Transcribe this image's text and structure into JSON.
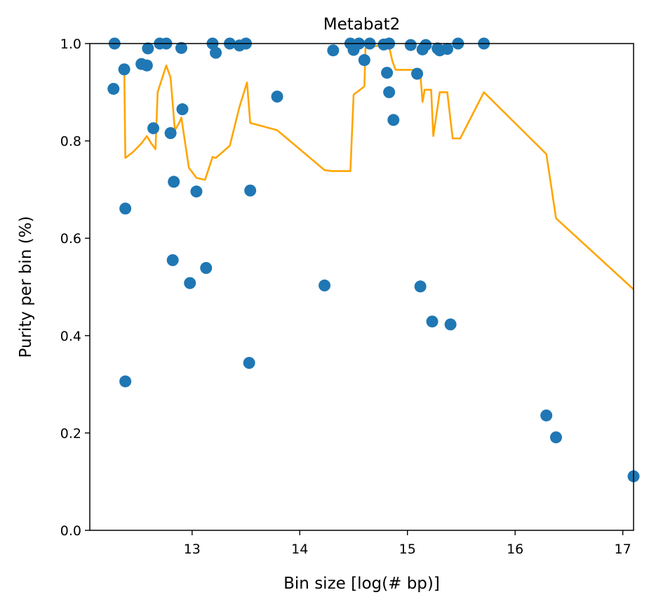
{
  "chart_data": {
    "type": "scatter",
    "title": "Metabat2",
    "xlabel": "Bin size [log(# bp)]",
    "ylabel": "Purity per bin (%)",
    "xlim": [
      12.05,
      17.1
    ],
    "ylim": [
      0.0,
      1.0
    ],
    "xticks": [
      13,
      14,
      15,
      16,
      17
    ],
    "yticks": [
      0.0,
      0.2,
      0.4,
      0.6,
      0.8,
      1.0
    ],
    "xtick_labels": [
      "13",
      "14",
      "15",
      "16",
      "17"
    ],
    "ytick_labels": [
      "0.0",
      "0.2",
      "0.4",
      "0.6",
      "0.8",
      "1.0"
    ],
    "grid": false,
    "legend": false,
    "colors": {
      "points": "#1f77b4",
      "line": "#ffa500"
    },
    "series": [
      {
        "kind": "scatter",
        "points": [
          [
            12.28,
            1.0
          ],
          [
            12.27,
            0.907
          ],
          [
            12.37,
            0.947
          ],
          [
            12.53,
            0.958
          ],
          [
            12.58,
            0.955
          ],
          [
            12.59,
            0.99
          ],
          [
            12.38,
            0.661
          ],
          [
            12.38,
            0.306
          ],
          [
            12.64,
            0.826
          ],
          [
            12.7,
            1.0
          ],
          [
            12.76,
            1.0
          ],
          [
            12.8,
            0.816
          ],
          [
            12.83,
            0.716
          ],
          [
            12.82,
            0.555
          ],
          [
            12.9,
            0.991
          ],
          [
            12.91,
            0.865
          ],
          [
            12.98,
            0.508
          ],
          [
            13.04,
            0.696
          ],
          [
            13.13,
            0.539
          ],
          [
            13.19,
            1.0
          ],
          [
            13.22,
            0.981
          ],
          [
            13.35,
            1.0
          ],
          [
            13.44,
            0.996
          ],
          [
            13.5,
            1.0
          ],
          [
            13.54,
            0.698
          ],
          [
            13.53,
            0.344
          ],
          [
            13.79,
            0.891
          ],
          [
            14.23,
            0.503
          ],
          [
            14.31,
            0.986
          ],
          [
            14.47,
            1.0
          ],
          [
            14.5,
            0.987
          ],
          [
            14.55,
            1.0
          ],
          [
            14.6,
            0.966
          ],
          [
            14.65,
            1.0
          ],
          [
            14.78,
            0.998
          ],
          [
            14.83,
            1.0
          ],
          [
            14.81,
            0.94
          ],
          [
            14.83,
            0.9
          ],
          [
            14.87,
            0.843
          ],
          [
            15.03,
            0.997
          ],
          [
            15.09,
            0.938
          ],
          [
            15.12,
            0.501
          ],
          [
            15.14,
            0.988
          ],
          [
            15.17,
            0.997
          ],
          [
            15.23,
            0.429
          ],
          [
            15.28,
            0.99
          ],
          [
            15.3,
            0.986
          ],
          [
            15.37,
            0.989
          ],
          [
            15.4,
            0.423
          ],
          [
            15.47,
            1.0
          ],
          [
            15.71,
            1.0
          ],
          [
            16.29,
            0.236
          ],
          [
            16.38,
            0.191
          ],
          [
            17.1,
            0.111
          ]
        ]
      },
      {
        "kind": "line",
        "points": [
          [
            12.37,
            0.947
          ],
          [
            12.38,
            0.765
          ],
          [
            12.45,
            0.777
          ],
          [
            12.53,
            0.795
          ],
          [
            12.58,
            0.81
          ],
          [
            12.62,
            0.795
          ],
          [
            12.66,
            0.783
          ],
          [
            12.68,
            0.9
          ],
          [
            12.76,
            0.955
          ],
          [
            12.8,
            0.93
          ],
          [
            12.84,
            0.822
          ],
          [
            12.88,
            0.837
          ],
          [
            12.9,
            0.848
          ],
          [
            12.97,
            0.745
          ],
          [
            13.04,
            0.724
          ],
          [
            13.12,
            0.72
          ],
          [
            13.19,
            0.767
          ],
          [
            13.22,
            0.765
          ],
          [
            13.35,
            0.79
          ],
          [
            13.44,
            0.87
          ],
          [
            13.51,
            0.92
          ],
          [
            13.54,
            0.837
          ],
          [
            13.79,
            0.822
          ],
          [
            14.23,
            0.74
          ],
          [
            14.3,
            0.738
          ],
          [
            14.47,
            0.738
          ],
          [
            14.5,
            0.895
          ],
          [
            14.6,
            0.912
          ],
          [
            14.61,
            0.99
          ],
          [
            14.64,
            0.993
          ],
          [
            14.78,
            0.997
          ],
          [
            14.83,
            0.993
          ],
          [
            14.86,
            0.964
          ],
          [
            14.89,
            0.946
          ],
          [
            15.09,
            0.946
          ],
          [
            15.12,
            0.937
          ],
          [
            15.14,
            0.88
          ],
          [
            15.16,
            0.905
          ],
          [
            15.22,
            0.905
          ],
          [
            15.24,
            0.81
          ],
          [
            15.3,
            0.9
          ],
          [
            15.37,
            0.9
          ],
          [
            15.42,
            0.805
          ],
          [
            15.49,
            0.805
          ],
          [
            15.71,
            0.9
          ],
          [
            16.29,
            0.773
          ],
          [
            16.38,
            0.641
          ],
          [
            17.1,
            0.495
          ]
        ]
      }
    ]
  }
}
